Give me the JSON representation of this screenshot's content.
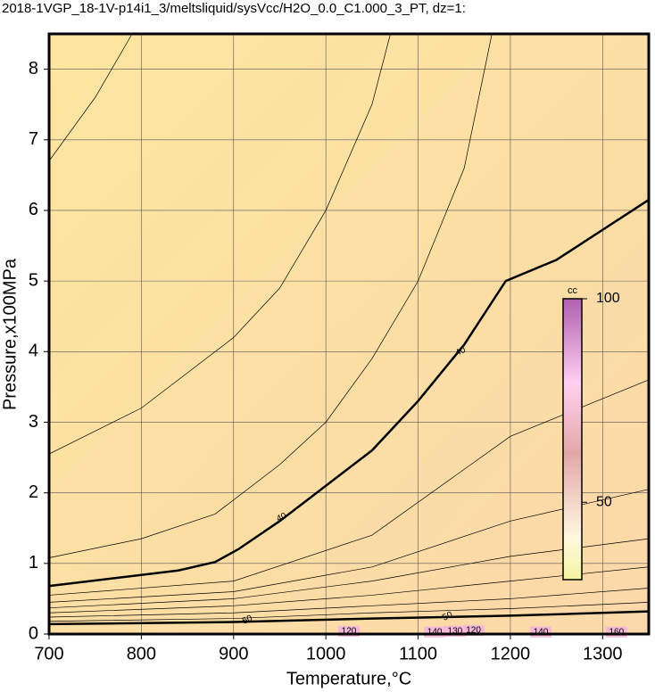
{
  "chart_data": {
    "type": "contour",
    "title": "2018-1VGP_18-1V-p14i1_3/meltsliquid/sysVcc/H2O_0.0_C1.000_3_PT, dz=1:",
    "x_label": "Temperature,°C",
    "y_label": "Pressure,x100MPa",
    "xlim": [
      700,
      1350
    ],
    "ylim": [
      0,
      8.5
    ],
    "xticks": [
      700,
      800,
      900,
      1000,
      1100,
      1200,
      1300
    ],
    "yticks": [
      0,
      1,
      2,
      3,
      4,
      5,
      6,
      7,
      8
    ],
    "grid": true,
    "series": [
      {
        "bold": false,
        "x": [
          700,
          750,
          790
        ],
        "y": [
          6.7,
          7.6,
          8.5
        ]
      },
      {
        "bold": false,
        "x": [
          700,
          800,
          900,
          950,
          1000,
          1050,
          1070
        ],
        "y": [
          2.55,
          3.2,
          4.2,
          4.9,
          6.0,
          7.5,
          8.5
        ]
      },
      {
        "bold": false,
        "x": [
          700,
          800,
          880,
          950,
          1000,
          1050,
          1100,
          1150,
          1180
        ],
        "y": [
          1.08,
          1.35,
          1.7,
          2.4,
          3.0,
          3.9,
          5.0,
          6.6,
          8.5
        ]
      },
      {
        "bold": true,
        "x": [
          700,
          840,
          880,
          905,
          950,
          1000,
          1050,
          1100,
          1150,
          1195,
          1250,
          1350
        ],
        "y": [
          0.68,
          0.9,
          1.02,
          1.2,
          1.6,
          2.1,
          2.6,
          3.3,
          4.1,
          5.0,
          5.3,
          6.15
        ]
      },
      {
        "bold": false,
        "x": [
          700,
          900,
          1050,
          1200,
          1350
        ],
        "y": [
          0.55,
          0.75,
          1.4,
          2.8,
          3.6
        ]
      },
      {
        "bold": false,
        "x": [
          700,
          900,
          1050,
          1200,
          1350
        ],
        "y": [
          0.45,
          0.6,
          0.95,
          1.6,
          2.05
        ]
      },
      {
        "bold": false,
        "x": [
          700,
          900,
          1050,
          1200,
          1350
        ],
        "y": [
          0.37,
          0.5,
          0.75,
          1.1,
          1.35
        ]
      },
      {
        "bold": false,
        "x": [
          700,
          900,
          1050,
          1200,
          1350
        ],
        "y": [
          0.3,
          0.4,
          0.55,
          0.75,
          0.95
        ]
      },
      {
        "bold": false,
        "x": [
          700,
          900,
          1050,
          1200,
          1350
        ],
        "y": [
          0.24,
          0.3,
          0.4,
          0.5,
          0.65
        ]
      },
      {
        "bold": false,
        "x": [
          700,
          900,
          1050,
          1200,
          1350
        ],
        "y": [
          0.18,
          0.22,
          0.3,
          0.36,
          0.45
        ]
      },
      {
        "bold": true,
        "x": [
          700,
          900,
          1050,
          1200,
          1350
        ],
        "y": [
          0.14,
          0.17,
          0.22,
          0.26,
          0.32
        ]
      }
    ],
    "labels": [
      {
        "text": "40",
        "x": 952,
        "y": 1.65,
        "box": false
      },
      {
        "text": "40",
        "x": 1146,
        "y": 4.0,
        "box": false
      },
      {
        "text": "50",
        "x": 915,
        "y": 0.2,
        "box": false
      },
      {
        "text": "50",
        "x": 1132,
        "y": 0.25,
        "box": false
      },
      {
        "text": "120",
        "x": 1025,
        "y": 0.04,
        "box": true
      },
      {
        "text": "130",
        "x": 1140,
        "y": 0.04,
        "box": true
      },
      {
        "text": "140",
        "x": 1118,
        "y": 0.03,
        "box": true
      },
      {
        "text": "120",
        "x": 1160,
        "y": 0.05,
        "box": true
      },
      {
        "text": "140",
        "x": 1233,
        "y": 0.03,
        "box": true
      },
      {
        "text": "160",
        "x": 1315,
        "y": 0.03,
        "box": true
      }
    ],
    "colorbar": {
      "label": "cc",
      "lim": [
        31,
        100
      ],
      "ticks": [
        50,
        100
      ]
    }
  }
}
